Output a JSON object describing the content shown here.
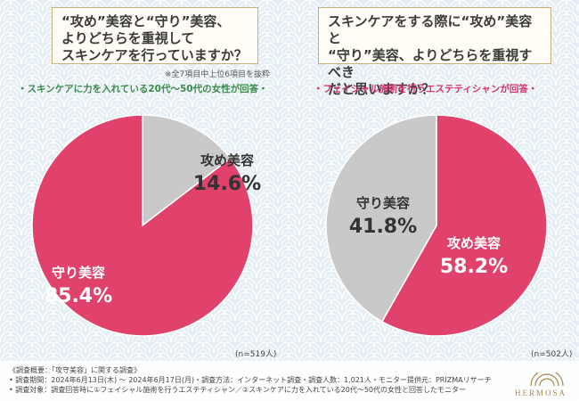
{
  "left": {
    "question": "“攻め”美容と“守り”美容、\nよりどちらを重視して\nスキンケアを行っていますか？",
    "note": "※全7項目中上位6項目を抜粋",
    "respondents": "・スキンケアに力を入れている20代〜50代の女性が回答・",
    "n_label": "(n=519人)"
  },
  "right": {
    "question": "スキンケアをする際に“攻め”美容と\n“守り”美容、よりどちらを重視すべき\nだと思いますか？",
    "respondents": "・フェイシャル施術を行うエステティシャンが回答・",
    "n_label": "(n=502人)"
  },
  "footer": {
    "line1": "《調査概要：「攻守美容」に関する調査》",
    "line2": "• 調査期間：2024年6月13日(木) 〜 2024年6月17日(月)・調査方法：インターネット調査・調査人数：1,021人・モニター提供元：PRIZMAリサーチ",
    "line3": "• 調査対象：調査回答時に①フェイシャル施術を行うエステティシャン／②スキンケアに力を入れている20代〜50代の女性と回答したモニター"
  },
  "brand": "HERMOSA",
  "colors": {
    "pink": "#e0426b",
    "gray": "#c9c9c9",
    "green_text": "#3a8a4a",
    "pink_text": "#d6336c"
  },
  "chart_data": [
    {
      "type": "pie",
      "title": "“攻め”美容と“守り”美容、よりどちらを重視してスキンケアを行っていますか？",
      "categories": [
        "攻め美容",
        "守り美容"
      ],
      "values": [
        14.6,
        85.4
      ],
      "value_labels": [
        "14.6%",
        "85.4%"
      ]
    },
    {
      "type": "pie",
      "title": "スキンケアをする際に“攻め”美容と“守り”美容、よりどちらを重視すべきだと思いますか？",
      "categories": [
        "攻め美容",
        "守り美容"
      ],
      "values": [
        58.2,
        41.8
      ],
      "value_labels": [
        "58.2%",
        "41.8%"
      ]
    }
  ]
}
